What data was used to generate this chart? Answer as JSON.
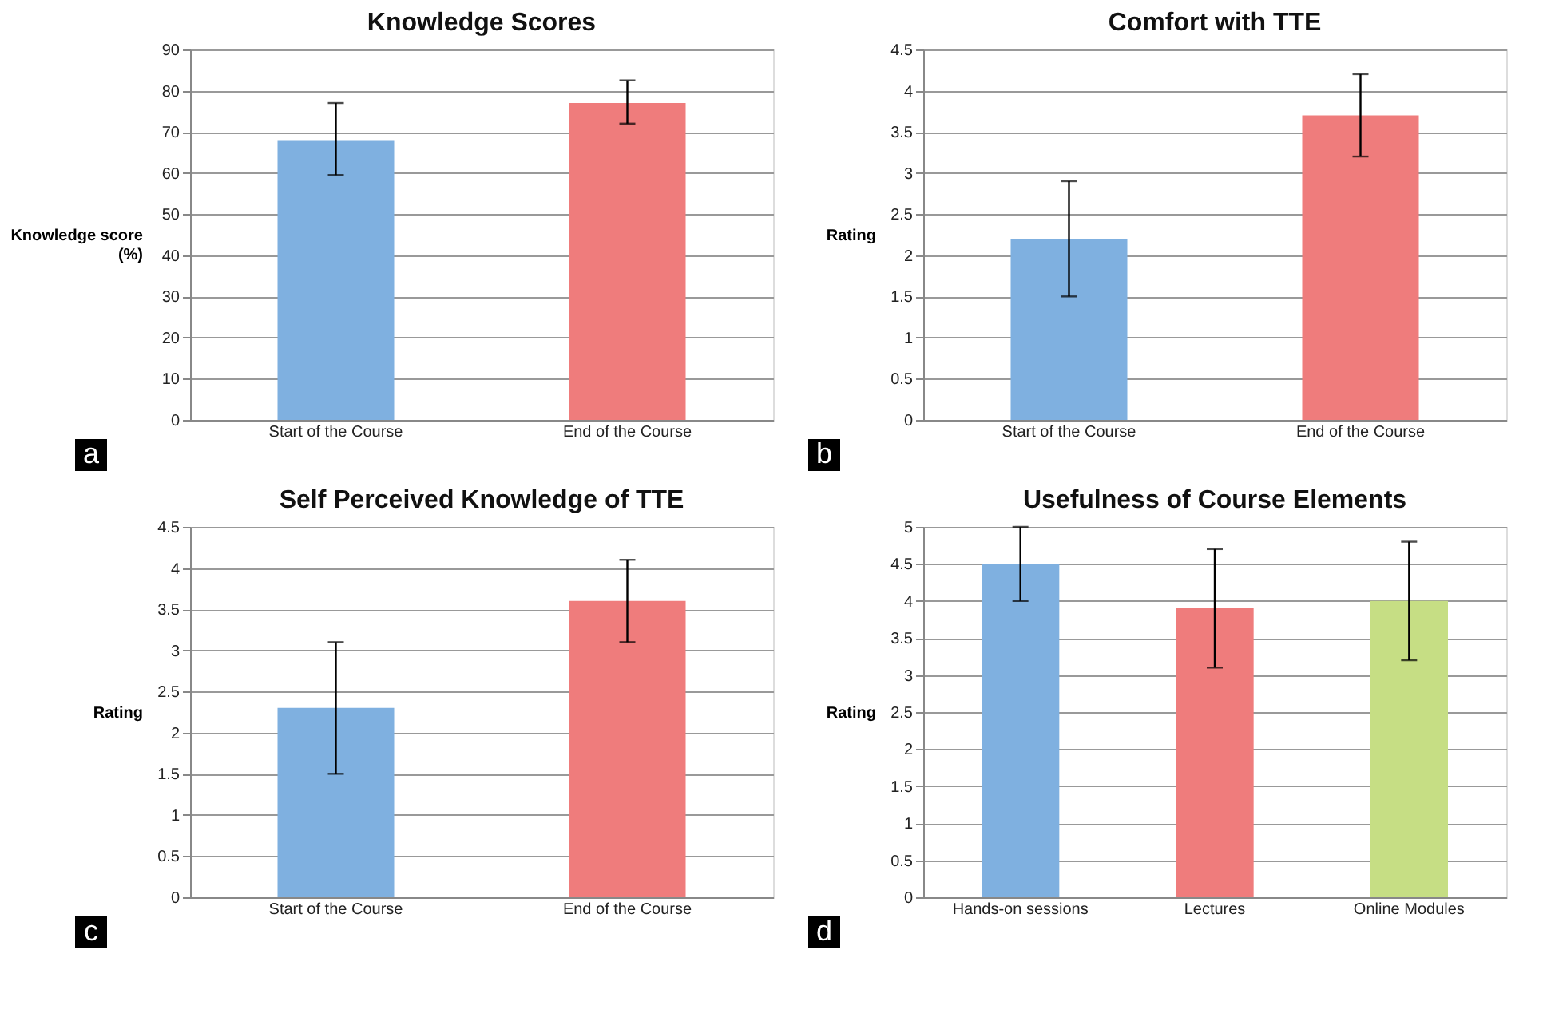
{
  "chart_data": [
    {
      "type": "bar",
      "title": "Knowledge Scores",
      "ylabel": "Knowledge score (%)",
      "categories": [
        "Start of the Course",
        "End of the Course"
      ],
      "values": [
        68,
        77
      ],
      "colors": [
        "#7fb0e0",
        "#ef7c7c"
      ],
      "errors": [
        [
          59.5,
          77
        ],
        [
          72,
          82.5
        ]
      ],
      "ylim": [
        0,
        90
      ],
      "yticks": [
        0,
        10,
        20,
        30,
        40,
        50,
        60,
        70,
        80,
        90
      ],
      "grid": "y",
      "annotations": [
        "a"
      ]
    },
    {
      "type": "bar",
      "title": "Comfort with TTE",
      "ylabel": "Rating",
      "categories": [
        "Start of the Course",
        "End of the Course"
      ],
      "values": [
        2.2,
        3.7
      ],
      "colors": [
        "#7fb0e0",
        "#ef7c7c"
      ],
      "errors": [
        [
          1.5,
          2.9
        ],
        [
          3.2,
          4.2
        ]
      ],
      "ylim": [
        0,
        4.5
      ],
      "yticks": [
        0,
        0.5,
        1,
        1.5,
        2,
        2.5,
        3,
        3.5,
        4,
        4.5
      ],
      "grid": "y",
      "annotations": [
        "b"
      ]
    },
    {
      "type": "bar",
      "title": "Self Perceived Knowledge of TTE",
      "ylabel": "Rating",
      "categories": [
        "Start of the Course",
        "End of the Course"
      ],
      "values": [
        2.3,
        3.6
      ],
      "colors": [
        "#7fb0e0",
        "#ef7c7c"
      ],
      "errors": [
        [
          1.5,
          3.1
        ],
        [
          3.1,
          4.1
        ]
      ],
      "ylim": [
        0,
        4.5
      ],
      "yticks": [
        0,
        0.5,
        1,
        1.5,
        2,
        2.5,
        3,
        3.5,
        4,
        4.5
      ],
      "grid": "y",
      "annotations": [
        "c"
      ]
    },
    {
      "type": "bar",
      "title": "Usefulness of Course Elements",
      "ylabel": "Rating",
      "categories": [
        "Hands-on sessions",
        "Lectures",
        "Online Modules"
      ],
      "values": [
        4.5,
        3.9,
        4.0
      ],
      "colors": [
        "#7fb0e0",
        "#ef7c7c",
        "#c6de84"
      ],
      "errors": [
        [
          4.0,
          5.0
        ],
        [
          3.1,
          4.7
        ],
        [
          3.2,
          4.8
        ]
      ],
      "ylim": [
        0,
        5
      ],
      "yticks": [
        0,
        0.5,
        1,
        1.5,
        2,
        2.5,
        3,
        3.5,
        4,
        4.5,
        5
      ],
      "grid": "y",
      "annotations": [
        "d"
      ]
    }
  ]
}
